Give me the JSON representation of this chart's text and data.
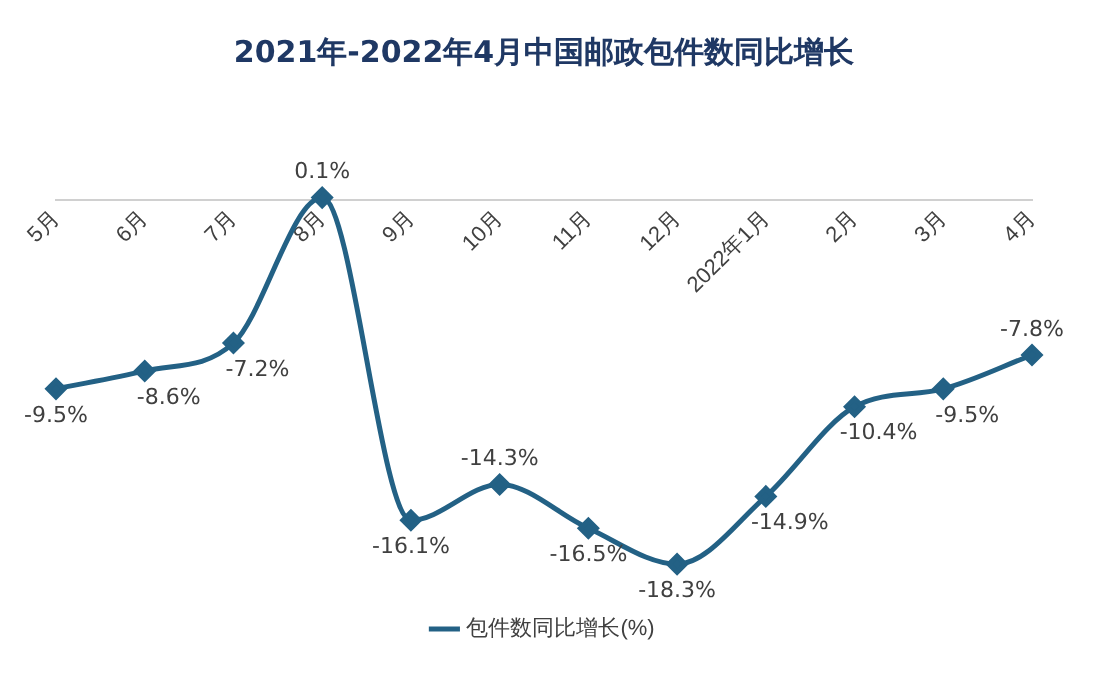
{
  "chart_data": {
    "type": "line",
    "title": "2021年-2022年4月中国邮政包件数同比增长",
    "categories": [
      "5月",
      "6月",
      "7月",
      "8月",
      "9月",
      "10月",
      "11月",
      "12月",
      "2022年1月",
      "2月",
      "3月",
      "4月"
    ],
    "series": [
      {
        "name": "包件数同比增长(%)",
        "color": "#236185",
        "values": [
          -9.5,
          -8.6,
          -7.2,
          0.1,
          -16.1,
          -14.3,
          -16.5,
          -18.3,
          -14.9,
          -10.4,
          -9.5,
          -7.8
        ],
        "value_labels": [
          "-9.5%",
          "-8.6%",
          "-7.2%",
          "0.1%",
          "-16.1%",
          "-14.3%",
          "-16.5%",
          "-18.3%",
          "-14.9%",
          "-10.4%",
          "-9.5%",
          "-7.8%"
        ]
      }
    ],
    "legend": "bottom",
    "marker": "diamond",
    "grid": false
  }
}
